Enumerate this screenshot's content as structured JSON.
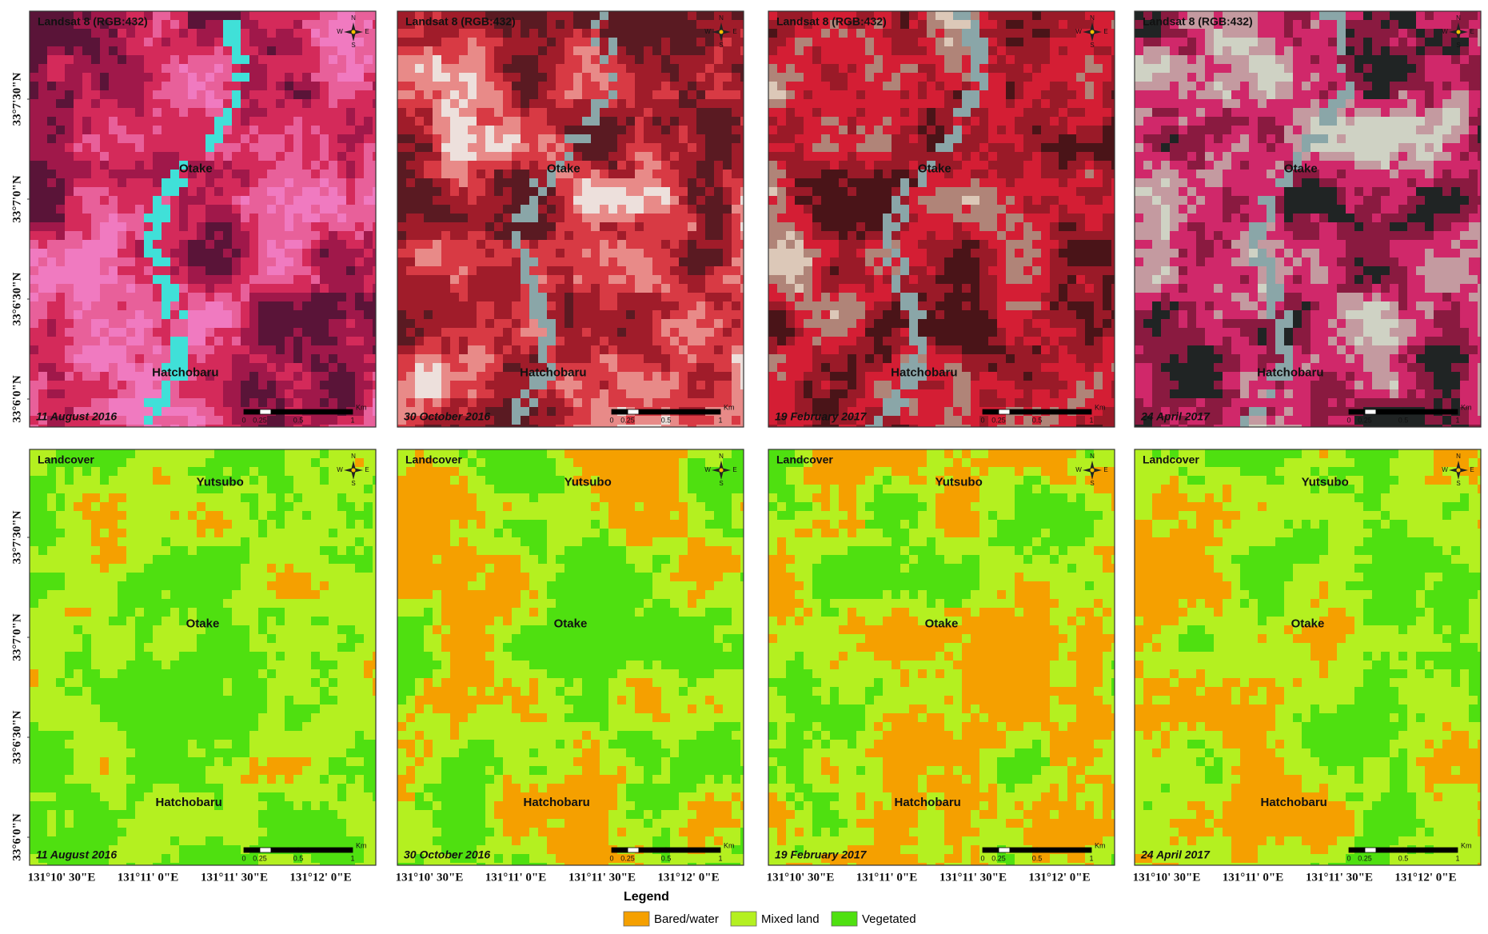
{
  "satellite_panels": [
    {
      "title": "Landsat 8 (RGB:432)",
      "date": "11 August 2016",
      "places": [
        "Otake",
        "Hatchobaru"
      ]
    },
    {
      "title": "Landsat 8 (RGB:432)",
      "date": "30 October 2016",
      "places": [
        "Otake",
        "Hatchobaru"
      ]
    },
    {
      "title": "Landsat 8 (RGB:432)",
      "date": "19 February 2017",
      "places": [
        "Otake",
        "Hatchobaru"
      ]
    },
    {
      "title": "Landsat 8 (RGB:432)",
      "date": "24 April 2017",
      "places": [
        "Otake",
        "Hatchobaru"
      ]
    }
  ],
  "landcover_panels": [
    {
      "title": "Landcover",
      "date": "11 August 2016",
      "places": [
        "Yutsubo",
        "Otake",
        "Hatchobaru"
      ]
    },
    {
      "title": "Landcover",
      "date": "30 October 2016",
      "places": [
        "Yutsubo",
        "Otake",
        "Hatchobaru"
      ]
    },
    {
      "title": "Landcover",
      "date": "19 February 2017",
      "places": [
        "Yutsubo",
        "Otake",
        "Hatchobaru"
      ]
    },
    {
      "title": "Landcover",
      "date": "24 April 2017",
      "places": [
        "Yutsubo",
        "Otake",
        "Hatchobaru"
      ]
    }
  ],
  "scale_bar": {
    "labels": [
      "0",
      "0.25",
      "0.5",
      "1"
    ],
    "unit": "Km"
  },
  "compass": {
    "n": "N",
    "e": "E",
    "s": "S",
    "w": "W"
  },
  "latitude_labels": [
    "33°7'30\"N",
    "33°7'0\"N",
    "33°6'30\"N",
    "33°6'0\"N"
  ],
  "longitude_labels": [
    "131°10' 30\"E",
    "131°11' 0\"E",
    "131°11' 30\"E",
    "131°12' 0\"E"
  ],
  "legend": {
    "title": "Legend",
    "items": [
      {
        "label": "Bared/water",
        "color": "#f5a000"
      },
      {
        "label": "Mixed land",
        "color": "#b4f020"
      },
      {
        "label": "Vegetated",
        "color": "#4fe010"
      }
    ]
  }
}
